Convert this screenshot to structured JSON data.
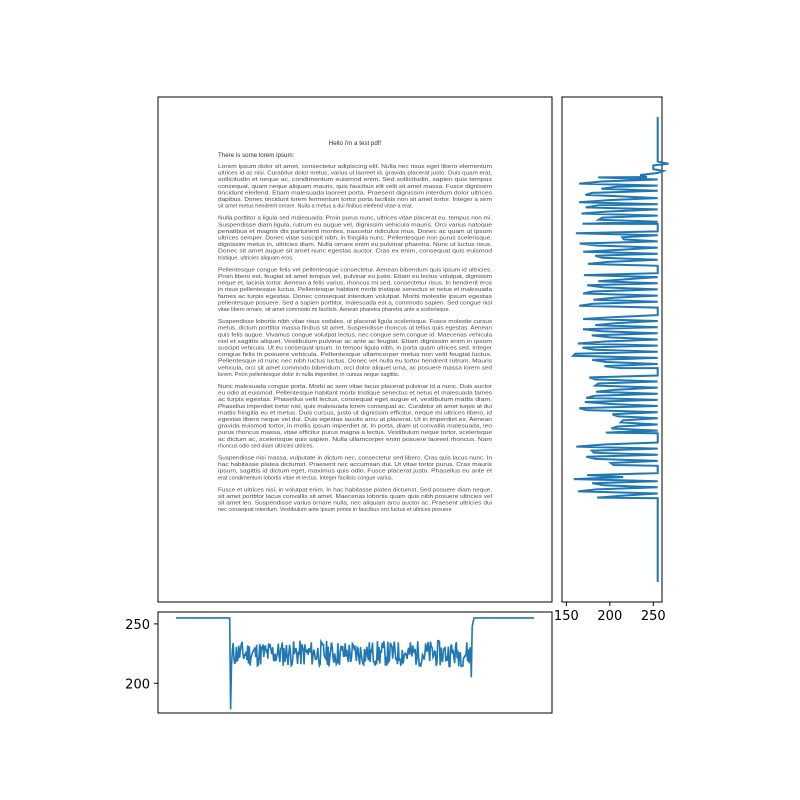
{
  "document": {
    "title": "Hello i'm a test pdf!",
    "heading": "There is some lorem ipsum:",
    "paragraphs": [
      [
        "Lorem ipsum dolor sit amet, consectetur adipiscing elit. Nulla nec risus eget libero elementum",
        "ultrices id ac nisi. Curabitur dolor metus, varius ut laoreet id, gravida placerat justo. Duis quam erat,",
        "sollicitudin et neque ac, condimentum euismod enim. Sed sollicitudin, sapien quis tempus",
        "consequat, quam neque aliquam mauris, quis faucibus elit velit sit amet massa. Fusce dignissim",
        "tincidunt eleifend. Etiam malesuada laoreet porta. Praesent dignissim interdum dolor ultrices",
        "dapibus. Donec tincidunt lorem fermentum tortor porta facilisis non sit amet tortor. Integer a sem",
        "sit amet metus hendrerit ornare. Nulla a metus a dui finibus eleifend vitae a erat."
      ],
      [
        "Nulla porttitor a ligula sed malesuada. Proin purus nunc, ultrices vitae placerat eu, tempus non mi.",
        "Suspendisse diam ligula, rutrum eu augue vel, dignissim vehicula mauris. Orci varius natoque",
        "penatibus et magnis dis parturient montes, nascetur ridiculus mus. Donec ac quam ut ipsum",
        "ultrices semper. Donec vitae suscipit nibh, in fringilla nunc. Pellentesque non purus scelerisque,",
        "dignissim metus in, ultricies diam. Nulla ornare enim eu pulvinar pharetra. Nunc ut luctus risus.",
        "Donec sit amet augue sit amet nunc egestas auctor. Cras ex enim, consequat quis euismod",
        "tristique, ultricies aliquam eros."
      ],
      [
        "Pellentesque congue felis vel pellentesque consectetur. Aenean bibendum quis ipsum id ultricies.",
        "Proin libero est, feugiat sit amet tempus vel, pulvinar eu justo. Etiam eu lectus volutpat, dignissim",
        "neque et, lacinia tortor. Aenean a felis varius, rhoncus mi sed, consectetur risus. In hendrerit eros",
        "in risus pellentesque luctus. Pellentesque habitant morbi tristique senectus et netus et malesuada",
        "fames ac turpis egestas. Donec consequat interdum volutpat. Morbi molestie ipsum egestas",
        "pellentesque posuere. Sed a sapien porttitor, malesuada est a, commodo sapien. Sed congue nisl",
        "vitae libero ornare, sit amet commodo mi facilisis. Aenean pharetra pharetra ante a scelerisque."
      ],
      [
        "Suspendisse lobortis nibh vitae risus sodales, ut placerat ligula scelerisque. Fusce molestie cursus",
        "metus, dictum porttitor massa finibus sit amet. Suspendisse rhoncus ut tellus quis egestas. Aenean",
        "quis felis augue. Vivamus congue volutpat lectus, nec congue sem congue id. Maecenas vehicula",
        "nisl et sagittis aliquet. Vestibulum pulvinar ac ante ac feugiat. Etiam dignissim enim in ipsum",
        "suscipit vehicula. Ut eu consequat ipsum. In tempor ligula nibh, in porta quam ultrices sed. Integer",
        "congue felis in posuere vehicula. Pellentesque ullamcorper metus non velit feugiat luctus.",
        "Pellentesque id nunc nec nibh luctus luctus. Donec vel nulla eu tortor hendrerit rutrum. Mauris",
        "vehicula, orci sit amet commodo bibendum, orci dolor aliquet urna, ac posuere massa lorem sed",
        "lorem. Proin pellentesque dolor in nulla imperdiet, in cursus neque sagittis."
      ],
      [
        "Nunc malesuada congue porta. Morbi ac sem vitae lacus placerat pulvinar id a nunc. Duis auctor",
        "eu odio at euismod. Pellentesque habitant morbi tristique senectus et netus et malesuada fames",
        "ac turpis egestas. Phasellus velit lectus, consequat eget augue et, vestibulum mattis diam.",
        "Phasellus imperdiet tortor nisi, quis malesuada lorem consequat ac. Curabitur sit amet turpis at dui",
        "mattis fringilla eu et metus. Duis cursus, justo ut dignissim efficitur, neque mi ultrices libero, id",
        "egestas libero neque vel dui. Duis egestas iaculis arcu at placerat. Ut in imperdiet ex. Aenean",
        "gravida euismod tortor, in mollis ipsum imperdiet at. In porta, diam ut convallis malesuada, leo",
        "purus rhoncus massa, vitae efficitur purus magna a lectus. Vestibulum neque tortor, scelerisque",
        "ac dictum ac, scelerisque quis sapien. Nulla ullamcorper enim posuere laoreet rhoncus. Nam",
        "rhoncus odio sed diam ultricies ultrices."
      ],
      [
        "Suspendisse nisi massa, vulputate in dictum nec, consectetur sed libero. Cras quis lacus nunc. In",
        "hac habitasse platea dictumst. Praesent nec accumsan dui. Ut vitae tortor purus. Cras mauris",
        "ipsum, sagittis id dictum eget, maximus quis odio. Fusce placerat justo. Phasellus eu ante et",
        "erat condimentum lobortis vitae et lectus. Integer facilisis congue varius."
      ],
      [
        "Fusce et ultrices nisi, in volutpat enim. In hac habitasse platea dictumst. Sed posuere diam neque,",
        "sit amet porttitor lacus convallis sit amet. Maecenas lobortis quam quis nibh posuere ultricies vel",
        "sit amet leo. Suspendisse varius ornare nulla, nec aliquam arcu auctor ac. Praesent ultricies dui",
        "nec consequat interdum. Vestibulum ante ipsum primis in faucibus orci luctus et ultrices posuere"
      ]
    ]
  },
  "chart_data": [
    {
      "panel": "document-image",
      "type": "image",
      "description_source": "rendered page image"
    },
    {
      "panel": "row-profile",
      "type": "line",
      "orientation": "vertical",
      "x_ticks": [
        150,
        200,
        250
      ],
      "xlim": [
        145,
        260
      ],
      "baseline": 255,
      "profile_segments": [
        {
          "row": 0,
          "value": 255
        },
        {
          "row": 45,
          "value": 255
        },
        {
          "row": 48,
          "value": 238
        },
        {
          "row": 52,
          "value": 250
        },
        {
          "row": 58,
          "value": 228
        },
        {
          "row": 65,
          "value": 160
        },
        {
          "row": 75,
          "value": 155
        },
        {
          "row": 85,
          "value": 160
        },
        {
          "row": 95,
          "value": 158
        },
        {
          "row": 115,
          "value": 255
        },
        {
          "row": 125,
          "value": 158
        },
        {
          "row": 160,
          "value": 255
        },
        {
          "row": 170,
          "value": 160
        },
        {
          "row": 205,
          "value": 255
        },
        {
          "row": 215,
          "value": 155
        },
        {
          "row": 270,
          "value": 255
        },
        {
          "row": 280,
          "value": 157
        },
        {
          "row": 340,
          "value": 255
        },
        {
          "row": 350,
          "value": 160
        },
        {
          "row": 375,
          "value": 255
        },
        {
          "row": 385,
          "value": 158
        },
        {
          "row": 410,
          "value": 255
        },
        {
          "row": 500,
          "value": 255
        }
      ]
    },
    {
      "panel": "column-profile",
      "type": "line",
      "y_ticks": [
        200,
        250
      ],
      "ylim": [
        175,
        260
      ],
      "flat_value": 255,
      "text_band_mean": 225,
      "min_value": 178,
      "columns": [
        0,
        60,
        61,
        62,
        65,
        70,
        75,
        80,
        85,
        90,
        95,
        100,
        105,
        110,
        115,
        120,
        125,
        130,
        135,
        140,
        145,
        150,
        155,
        160,
        165,
        170,
        175,
        180,
        185,
        190,
        195,
        200,
        205,
        210,
        215,
        220,
        225,
        230,
        235,
        240,
        245,
        250,
        255,
        260,
        265,
        270,
        275,
        280,
        285,
        290,
        295,
        300,
        305,
        310,
        315,
        320,
        325,
        328,
        330,
        331,
        332,
        333,
        334,
        400
      ],
      "values": [
        255,
        255,
        200,
        178,
        215,
        230,
        222,
        228,
        226,
        220,
        229,
        224,
        232,
        218,
        226,
        230,
        225,
        221,
        228,
        224,
        230,
        219,
        227,
        223,
        229,
        222,
        226,
        231,
        220,
        227,
        225,
        229,
        222,
        228,
        224,
        230,
        221,
        226,
        229,
        223,
        228,
        225,
        231,
        222,
        227,
        224,
        230,
        221,
        228,
        226,
        229,
        223,
        227,
        231,
        224,
        229,
        222,
        228,
        205,
        240,
        248,
        255,
        255,
        255
      ]
    }
  ]
}
